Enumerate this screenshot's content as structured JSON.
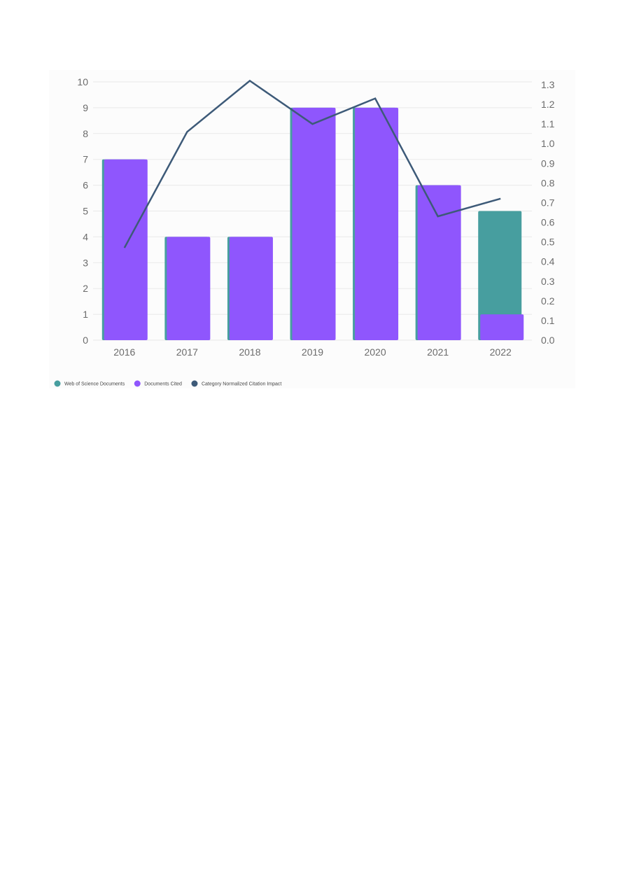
{
  "chart_data": {
    "type": "bar",
    "title": "",
    "xlabel": "",
    "ylabel": "",
    "categories": [
      "2016",
      "2017",
      "2018",
      "2019",
      "2020",
      "2021",
      "2022"
    ],
    "series": [
      {
        "name": "Web of Science Documents",
        "kind": "bar",
        "axis": "left",
        "color": "#479e9f",
        "values": [
          7,
          4,
          4,
          9,
          9,
          6,
          5
        ]
      },
      {
        "name": "Documents Cited",
        "kind": "bar",
        "axis": "left",
        "color": "#8f56fd",
        "values": [
          7,
          4,
          4,
          9,
          9,
          6,
          1
        ]
      },
      {
        "name": "Category Normalized Citation Impact",
        "kind": "line",
        "axis": "right",
        "color": "#3d5a78",
        "values": [
          0.47,
          1.06,
          1.32,
          1.1,
          1.23,
          0.63,
          0.72
        ]
      }
    ],
    "ylim_left": [
      0,
      10
    ],
    "yticks_left": [
      "0",
      "1",
      "2",
      "3",
      "4",
      "5",
      "6",
      "7",
      "8",
      "9",
      "10"
    ],
    "ylim_right": [
      0,
      1.3
    ],
    "yticks_right": [
      "0.0",
      "0.1",
      "0.2",
      "0.3",
      "0.4",
      "0.5",
      "0.6",
      "0.7",
      "0.8",
      "0.9",
      "1.0",
      "1.1",
      "1.2",
      "1.3"
    ],
    "grid": true,
    "legend_position": "bottom-left"
  }
}
